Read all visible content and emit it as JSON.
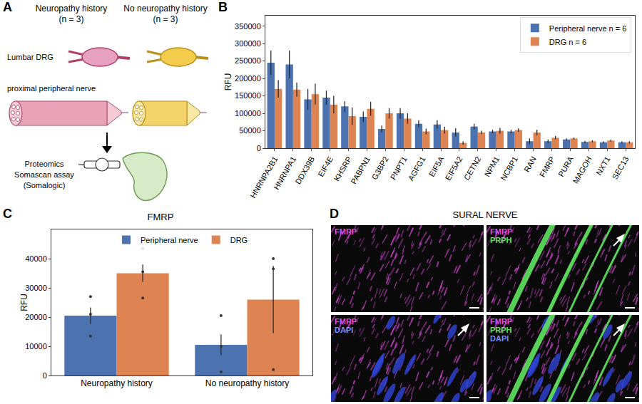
{
  "panels": [
    "A",
    "B",
    "C",
    "D"
  ],
  "diagram": {
    "groups": [
      {
        "label": "Neuropathy history",
        "n": "(n = 3)"
      },
      {
        "label": "No neuropathy history",
        "n": "(n = 3)"
      }
    ],
    "tissue_labels": [
      "Lumbar DRG",
      "proximal peripheral nerve"
    ],
    "assay": [
      "Proteomics",
      "Somascan assay",
      "(Somalogic)"
    ]
  },
  "chart_data": [
    {
      "type": "bar",
      "y_label": "RFU",
      "categories": [
        "HNRNPA2B1",
        "HNRNPA1",
        "DDX39B",
        "EIF4E",
        "KHSRP",
        "PABPN1",
        "G3BP2",
        "PNPT1",
        "AGFG1",
        "EIF5A",
        "EIF5A2",
        "CETN2",
        "NPM1",
        "NCBP1",
        "RAN",
        "FMRP",
        "PURA",
        "MAGOH",
        "NXT1",
        "SEC13"
      ],
      "series": [
        {
          "name": "Peripheral nerve n = 6",
          "color": "#4c72b0",
          "values": [
            245000,
            240000,
            140000,
            145000,
            120000,
            90000,
            55000,
            100000,
            70000,
            68000,
            45000,
            62000,
            48000,
            48000,
            20000,
            20000,
            25000,
            18000,
            17000,
            17000
          ],
          "error": [
            35000,
            40000,
            30000,
            20000,
            15000,
            15000,
            10000,
            15000,
            10000,
            12000,
            12000,
            8000,
            5000,
            5000,
            8000,
            5000,
            3000,
            3000,
            3000,
            3000
          ]
        },
        {
          "name": "DRG n = 6",
          "color": "#dd8452",
          "values": [
            170000,
            168000,
            155000,
            125000,
            92000,
            113000,
            100000,
            85000,
            48000,
            52000,
            15000,
            45000,
            50000,
            52000,
            45000,
            30000,
            28000,
            20000,
            22000,
            17000
          ],
          "error": [
            25000,
            20000,
            30000,
            25000,
            25000,
            20000,
            15000,
            15000,
            8000,
            10000,
            5000,
            5000,
            8000,
            5000,
            8000,
            5000,
            3000,
            3000,
            3000,
            3000
          ]
        }
      ],
      "ylim": [
        0,
        380000
      ],
      "yticks": [
        0,
        50000,
        100000,
        150000,
        200000,
        250000,
        300000,
        350000
      ],
      "legend": "top right",
      "grid": false
    },
    {
      "type": "bar",
      "title": "FMRP",
      "y_label": "RFU",
      "categories": [
        "Neuropathy history",
        "No neuropathy history"
      ],
      "series": [
        {
          "name": "Peripheral nerve",
          "color": "#4c72b0",
          "values": [
            20500,
            10500
          ],
          "error": [
            2800,
            3500
          ],
          "points": [
            [
              27000,
              21000,
              13500
            ],
            [
              20500,
              10000,
              1200
            ]
          ]
        },
        {
          "name": "DRG",
          "color": "#dd8452",
          "values": [
            35000,
            26000
          ],
          "error": [
            3000,
            11500
          ],
          "points": [
            [
              43500,
              35500,
              26500
            ],
            [
              40000,
              36500,
              2000
            ]
          ]
        }
      ],
      "ylim": [
        0,
        50000
      ],
      "yticks": [
        0,
        10000,
        20000,
        30000,
        40000
      ],
      "legend": "top",
      "grid": false
    }
  ],
  "image": {
    "title": "SURAL NERVE",
    "channels": [
      {
        "name": "FMRP",
        "color": "#e14ce1"
      },
      {
        "name": "PRPH",
        "color": "#5fe35f"
      },
      {
        "name": "DAPI",
        "color": "#6f8cff"
      }
    ],
    "tiles": [
      [
        "FMRP"
      ],
      [
        "FMRP",
        "PRPH"
      ],
      [
        "FMRP",
        "DAPI"
      ],
      [
        "FMRP",
        "PRPH",
        "DAPI"
      ]
    ]
  }
}
